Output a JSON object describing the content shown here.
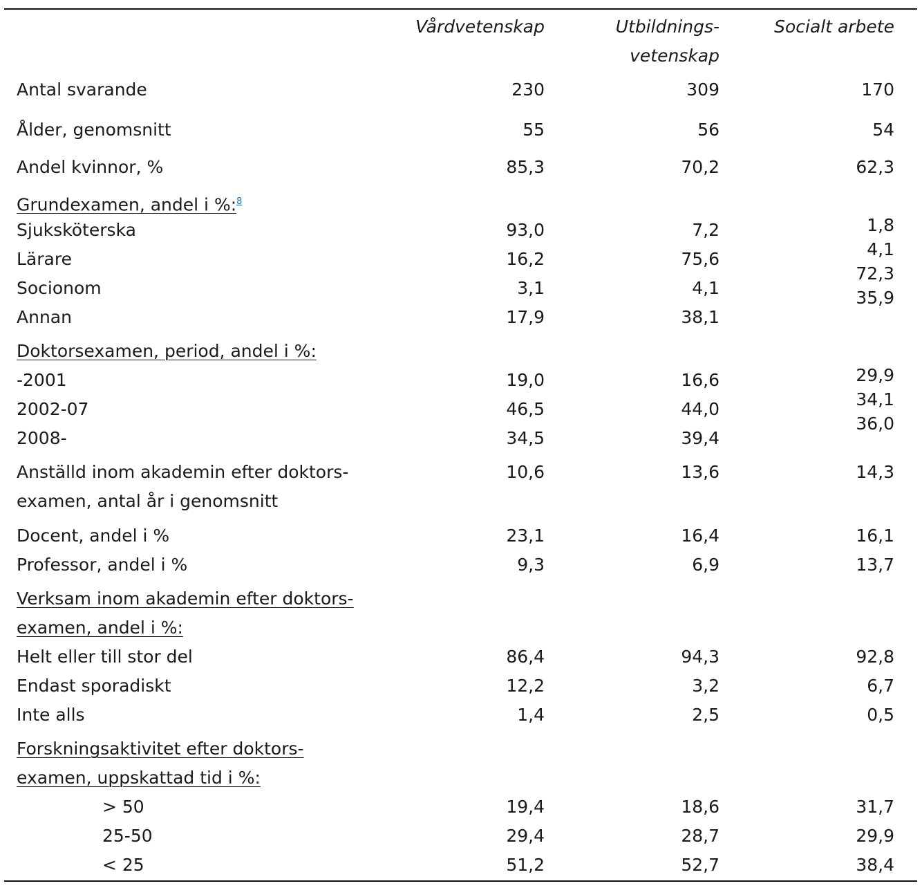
{
  "headers": {
    "col1": "Vårdvetenskap",
    "col2_line1": "Utbildnings-",
    "col2_line2": "vetenskap",
    "col3": "Socialt arbete"
  },
  "rows": {
    "antal": {
      "label": "Antal svarande",
      "v": [
        "230",
        "309",
        "170"
      ]
    },
    "alder": {
      "label": "Ålder, genomsnitt",
      "v": [
        "55",
        "56",
        "54"
      ]
    },
    "kvinnor": {
      "label": "Andel kvinnor, %",
      "v": [
        "85,3",
        "70,2",
        "62,3"
      ]
    }
  },
  "grundexamen": {
    "heading": "Grundexamen, andel i %:",
    "footnote": "8",
    "items": [
      {
        "label": "Sjuksköterska",
        "v": [
          "93,0",
          "7,2",
          "1,8"
        ]
      },
      {
        "label": "Lärare",
        "v": [
          "16,2",
          "75,6",
          "4,1"
        ]
      },
      {
        "label": "Socionom",
        "v": [
          "3,1",
          "4,1",
          "72,3"
        ]
      },
      {
        "label": "Annan",
        "v": [
          "17,9",
          "38,1",
          "35,9"
        ]
      }
    ]
  },
  "doktorsexamen": {
    "heading": "Doktorsexamen, period, andel i %:",
    "items": [
      {
        "label": "-2001",
        "v": [
          "19,0",
          "16,6",
          "29,9"
        ]
      },
      {
        "label": "2002-07",
        "v": [
          "46,5",
          "44,0",
          "34,1"
        ]
      },
      {
        "label": "2008-",
        "v": [
          "34,5",
          "39,4",
          "36,0"
        ]
      }
    ]
  },
  "anstalld": {
    "line1": "Anställd inom akademin efter doktors-",
    "line2": "examen, antal år i genomsnitt",
    "v": [
      "10,6",
      "13,6",
      "14,3"
    ]
  },
  "docent": {
    "label": "Docent, andel i %",
    "v": [
      "23,1",
      "16,4",
      "16,1"
    ]
  },
  "professor": {
    "label": "Professor, andel i %",
    "v": [
      "9,3",
      "6,9",
      "13,7"
    ]
  },
  "verksam": {
    "line1": "Verksam inom akademin efter doktors-",
    "line2": "examen, andel i %:",
    "items": [
      {
        "label": "Helt eller till stor del",
        "v": [
          "86,4",
          "94,3",
          "92,8"
        ]
      },
      {
        "label": "Endast sporadiskt",
        "v": [
          "12,2",
          "3,2",
          "6,7"
        ]
      },
      {
        "label": "Inte alls",
        "v": [
          "1,4",
          "2,5",
          "0,5"
        ]
      }
    ]
  },
  "forskning": {
    "line1": "Forskningsaktivitet efter doktors-",
    "line2": "examen, uppskattad tid i %:",
    "items": [
      {
        "label": "> 50",
        "v": [
          "19,4",
          "18,6",
          "31,7"
        ]
      },
      {
        "label": "25-50",
        "v": [
          "29,4",
          "28,7",
          "29,9"
        ]
      },
      {
        "label": "< 25",
        "v": [
          "51,2",
          "52,7",
          "38,4"
        ]
      }
    ]
  }
}
